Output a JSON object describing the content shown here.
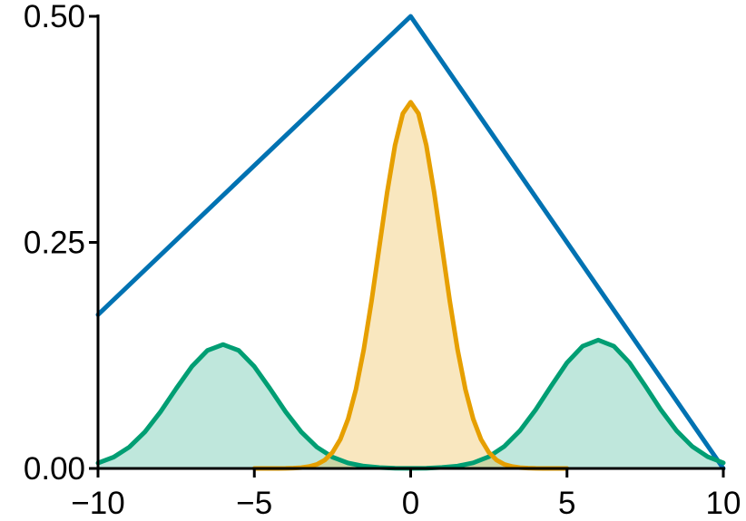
{
  "chart_data": {
    "type": "line",
    "xlim": [
      -10,
      10
    ],
    "ylim": [
      0,
      0.5
    ],
    "xticks": [
      {
        "value": -10,
        "label": "−10"
      },
      {
        "value": -5,
        "label": "−5"
      },
      0,
      5,
      10
    ],
    "yticks": [
      {
        "value": 0,
        "label": "0.00"
      },
      {
        "value": 0.25,
        "label": "0.25"
      },
      {
        "value": 0.5,
        "label": "0.50"
      }
    ],
    "series": [
      {
        "color": "#0072b2",
        "fill": false,
        "x": [
          -10,
          0,
          10
        ],
        "values": [
          0.17,
          0.5,
          0
        ]
      },
      {
        "color": "#009e73",
        "fill": true,
        "x": [
          -10,
          -9.5,
          -9,
          -8.5,
          -8,
          -7.5,
          -7,
          -6.5,
          -6,
          -5.5,
          -5,
          -4.5,
          -4,
          -3.5,
          -3,
          -2.5,
          -2,
          -1.5,
          -1,
          -0.5,
          0,
          0.5,
          1,
          1.5,
          2,
          2.5,
          3,
          3.5,
          4,
          4.5,
          5,
          5.5,
          6,
          6.5,
          7,
          7.5,
          8,
          8.5,
          9,
          9.5,
          10
        ],
        "values": [
          0.006,
          0.0125,
          0.0236,
          0.0404,
          0.0627,
          0.0883,
          0.1127,
          0.1305,
          0.137,
          0.1305,
          0.1127,
          0.0883,
          0.0627,
          0.0404,
          0.0236,
          0.0125,
          0.006,
          0.0026,
          0.001,
          0.0003,
          0.0001,
          0.0003,
          0.0011,
          0.0027,
          0.0062,
          0.013,
          0.0245,
          0.0419,
          0.065,
          0.0914,
          0.1169,
          0.1352,
          0.142,
          0.1352,
          0.1169,
          0.0914,
          0.065,
          0.0419,
          0.0245,
          0.013,
          0.0062
        ]
      },
      {
        "color": "#e69f00",
        "fill": true,
        "x": [
          -5,
          -4.75,
          -4.5,
          -4.25,
          -4,
          -3.75,
          -3.5,
          -3.25,
          -3,
          -2.75,
          -2.5,
          -2.25,
          -2,
          -1.75,
          -1.5,
          -1.25,
          -1,
          -0.75,
          -0.5,
          -0.25,
          0,
          0.25,
          0.5,
          0.75,
          1,
          1.25,
          1.5,
          1.75,
          2,
          2.25,
          2.5,
          2.75,
          3,
          3.25,
          3.5,
          3.75,
          4,
          4.25,
          4.5,
          4.75,
          5
        ],
        "values": [
          0,
          0,
          0,
          0,
          0.0001,
          0.0004,
          0.0009,
          0.0021,
          0.0045,
          0.0092,
          0.0178,
          0.0322,
          0.0548,
          0.0876,
          0.1315,
          0.1854,
          0.2456,
          0.3057,
          0.3574,
          0.3925,
          0.405,
          0.3925,
          0.3574,
          0.3057,
          0.2456,
          0.1854,
          0.1315,
          0.0876,
          0.0548,
          0.0322,
          0.0178,
          0.0092,
          0.0045,
          0.0021,
          0.0009,
          0.0004,
          0.0001,
          0,
          0,
          0,
          0
        ]
      }
    ]
  }
}
